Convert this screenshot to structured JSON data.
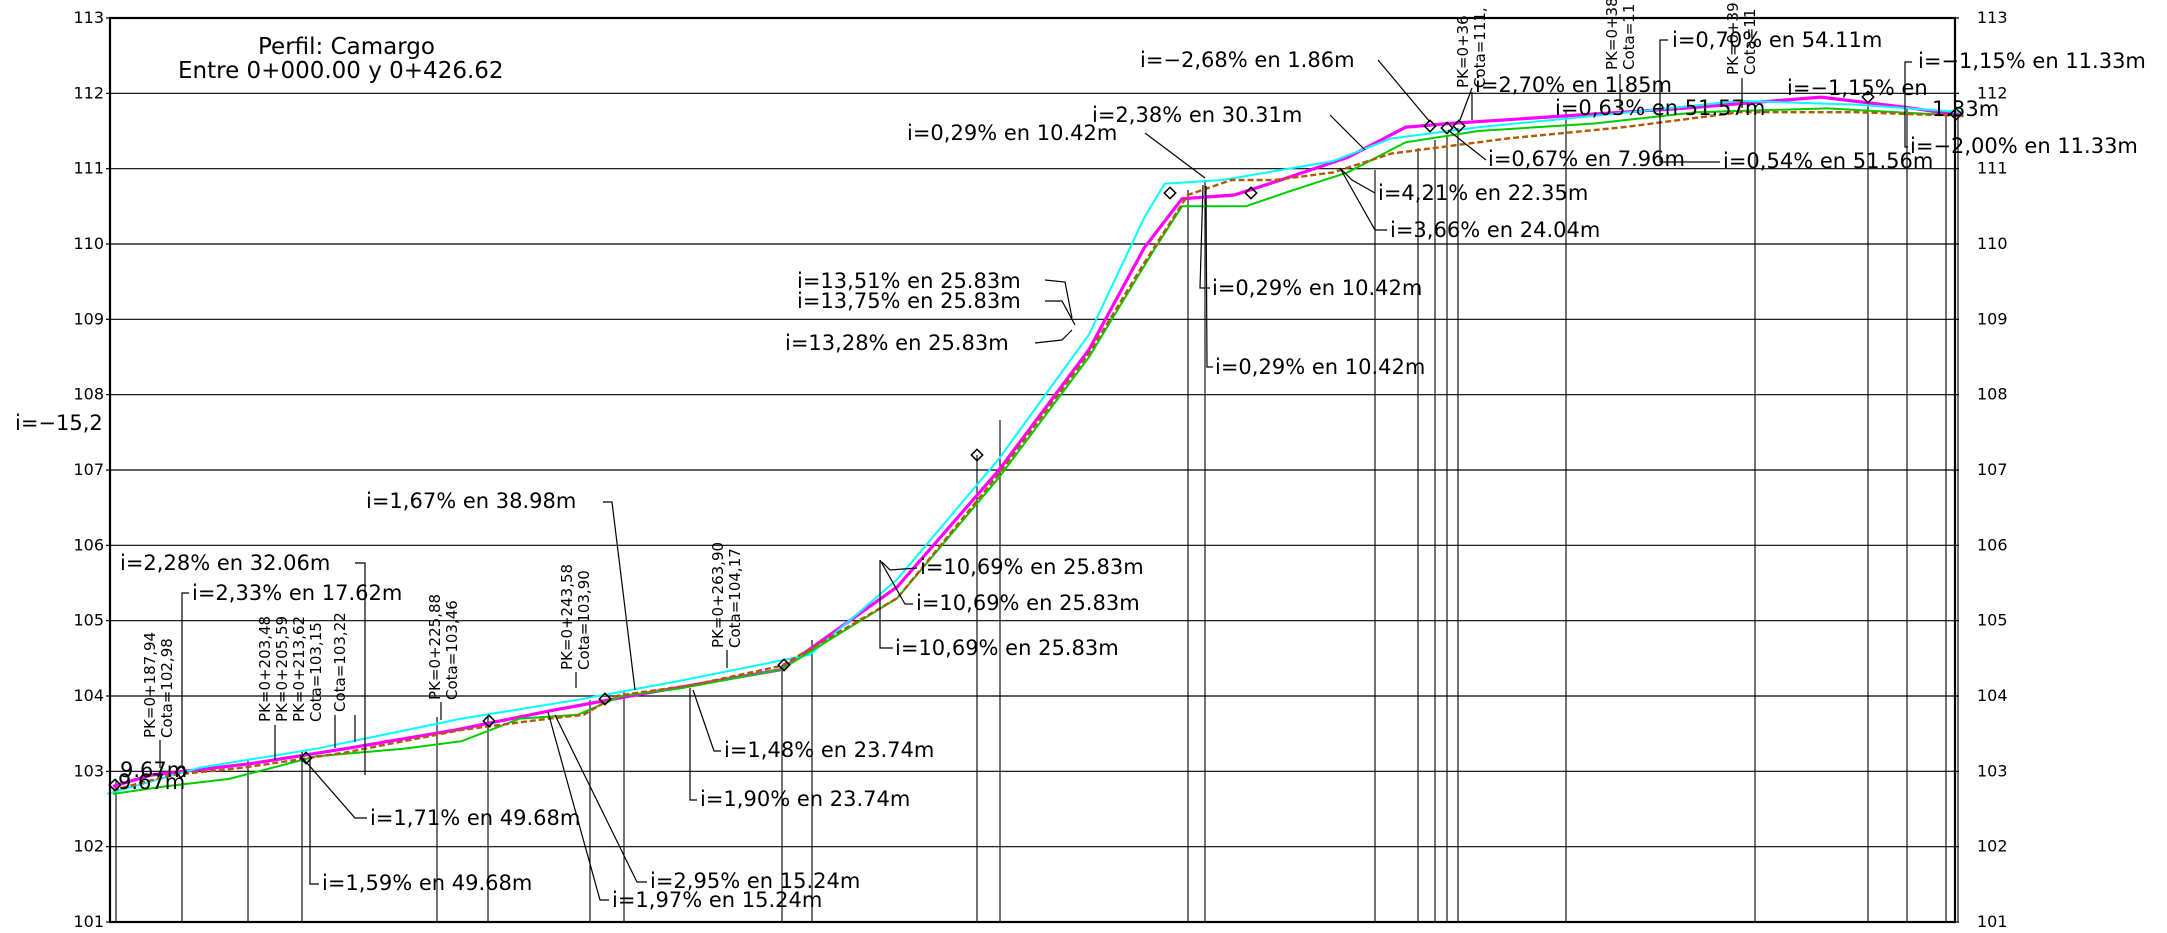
{
  "title": {
    "line1": "Perfil:  Camargo",
    "line2": "Entre  0+000.00  y  0+426.62"
  },
  "y_ticks": [
    "101",
    "102",
    "103",
    "104",
    "105",
    "106",
    "107",
    "108",
    "109",
    "110",
    "111",
    "112",
    "113"
  ],
  "clipped_left_label": "i=−15,2",
  "chart_data": {
    "type": "line",
    "title": "Perfil:  Camargo",
    "subtitle": "Entre  0+000.00  y  0+426.62",
    "ylim": [
      101,
      113
    ],
    "yticks": [
      101,
      102,
      103,
      104,
      105,
      106,
      107,
      108,
      109,
      110,
      111,
      112,
      113
    ],
    "series": [
      {
        "color": "#ff00ff",
        "points": [
          [
            0,
            102.8
          ],
          [
            13,
            102.95
          ],
          [
            47,
            103.1
          ],
          [
            80,
            103.3
          ],
          [
            118,
            103.55
          ],
          [
            150,
            103.8
          ],
          [
            178,
            104.0
          ],
          [
            230,
            104.35
          ],
          [
            270,
            105.45
          ],
          [
            305,
            107.0
          ],
          [
            336,
            108.6
          ],
          [
            355,
            109.95
          ],
          [
            368,
            110.6
          ],
          [
            386,
            110.65
          ],
          [
            402,
            110.85
          ],
          [
            425,
            111.15
          ],
          [
            445,
            111.55
          ],
          [
            460,
            111.6
          ],
          [
            500,
            111.7
          ],
          [
            540,
            111.8
          ],
          [
            588,
            111.95
          ],
          [
            620,
            111.8
          ],
          [
            637,
            111.7
          ]
        ]
      },
      {
        "color": "#00ffff",
        "points": [
          [
            -2,
            102.7
          ],
          [
            30,
            103.05
          ],
          [
            70,
            103.3
          ],
          [
            120,
            103.7
          ],
          [
            160,
            103.95
          ],
          [
            195,
            104.2
          ],
          [
            240,
            104.55
          ],
          [
            270,
            105.55
          ],
          [
            305,
            107.15
          ],
          [
            336,
            108.8
          ],
          [
            355,
            110.35
          ],
          [
            362,
            110.8
          ],
          [
            382,
            110.85
          ],
          [
            420,
            111.1
          ],
          [
            440,
            111.4
          ],
          [
            470,
            111.55
          ],
          [
            510,
            111.7
          ],
          [
            560,
            111.9
          ],
          [
            600,
            111.85
          ],
          [
            637,
            111.75
          ]
        ]
      },
      {
        "color": "#00cc00",
        "points": [
          [
            0,
            102.7
          ],
          [
            18,
            102.8
          ],
          [
            40,
            102.9
          ],
          [
            70,
            103.2
          ],
          [
            100,
            103.3
          ],
          [
            120,
            103.4
          ],
          [
            140,
            103.7
          ],
          [
            160,
            103.75
          ],
          [
            175,
            104.0
          ],
          [
            195,
            104.1
          ],
          [
            230,
            104.35
          ],
          [
            270,
            105.3
          ],
          [
            305,
            106.9
          ],
          [
            336,
            108.5
          ],
          [
            358,
            109.9
          ],
          [
            368,
            110.5
          ],
          [
            390,
            110.5
          ],
          [
            405,
            110.7
          ],
          [
            425,
            110.95
          ],
          [
            445,
            111.35
          ],
          [
            470,
            111.5
          ],
          [
            510,
            111.6
          ],
          [
            545,
            111.75
          ],
          [
            590,
            111.8
          ],
          [
            637,
            111.7
          ]
        ]
      },
      {
        "color": "#b35900",
        "points": [
          [
            0,
            102.75
          ],
          [
            20,
            102.95
          ],
          [
            45,
            103.05
          ],
          [
            80,
            103.25
          ],
          [
            120,
            103.55
          ],
          [
            150,
            103.7
          ],
          [
            162,
            103.75
          ],
          [
            173,
            104.0
          ],
          [
            200,
            104.15
          ],
          [
            230,
            104.4
          ],
          [
            270,
            105.3
          ],
          [
            305,
            106.95
          ],
          [
            336,
            108.55
          ],
          [
            355,
            109.75
          ],
          [
            370,
            110.65
          ],
          [
            385,
            110.85
          ],
          [
            400,
            110.85
          ],
          [
            420,
            110.95
          ],
          [
            440,
            111.2
          ],
          [
            480,
            111.4
          ],
          [
            520,
            111.55
          ],
          [
            560,
            111.75
          ],
          [
            600,
            111.75
          ],
          [
            637,
            111.7
          ]
        ]
      }
    ]
  },
  "pk_labels": [
    {
      "pk": "PK=0+187,94",
      "cota": "Cota=102,98"
    },
    {
      "pk": "PK=0+203,48",
      "cota": "PK=0+205,59"
    },
    {
      "pk": "PK=0+213,62",
      "cota": "Cota=103,15"
    },
    {
      "pk": "Cota=103,22",
      "cota": ""
    },
    {
      "pk": "PK=0+225,88",
      "cota": "Cota=103,46"
    },
    {
      "pk": "PK=0+243,58",
      "cota": "Cota=103,90"
    },
    {
      "pk": "PK=0+263,90",
      "cota": "Cota=104,17"
    },
    {
      "pk": "PK=0+36",
      "cota": "Cota=111,"
    },
    {
      "pk": "PK=0+38",
      "cota": "Cota=11"
    },
    {
      "pk": "PK=0+39",
      "cota": "Cota=11"
    }
  ],
  "grade_annotations": [
    "i=−2,68%  en  1.86m",
    "i=2,38%  en  30.31m",
    "i=0,29%  en  10.42m",
    "i=2,70%  en  1.85m",
    "i=0,63%  en  51.57m",
    "i=0,70%  en  54.11m",
    "i=−1,15%  en",
    "i=−1,15%  en  11.33m",
    "1.33m",
    "i=−2,00%  en  11.33m",
    "i=0,67%  en  7.96m",
    "i=0,54%  en  51.56m",
    "i=4,21%  en  22.35m",
    "i=3,66%  en  24.04m",
    "i=13,51%  en  25.83m",
    "i=13,75%  en  25.83m",
    "i=13,28%  en  25.83m",
    "i=0,29%  en  10.42m",
    "i=0,29%  en  10.42m",
    "i=1,67%  en  38.98m",
    "i=2,28%  en  32.06m",
    "i=2,33%  en  17.62m",
    "i=10,69%  en  25.83m",
    "i=10,69%  en  25.83m",
    "i=10,69%  en  25.83m",
    "9.67m",
    "9.67m",
    "i=1,48%  en  23.74m",
    "i=1,90%  en  23.74m",
    "i=1,71%  en  49.68m",
    "i=1,59%  en  49.68m",
    "i=2,95%  en  15.24m",
    "i=1,97%  en  15.24m"
  ]
}
